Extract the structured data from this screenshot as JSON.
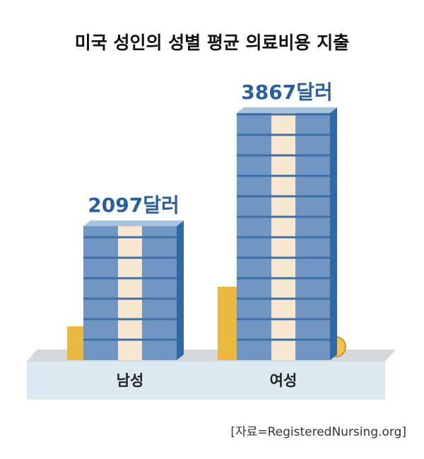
{
  "chart_data": {
    "type": "bar",
    "title": "미국 성인의 성별 평균 의료비용 지출",
    "categories": [
      "남성",
      "여성"
    ],
    "values": [
      2097,
      3867
    ],
    "value_labels": [
      "2097달러",
      "3867달러"
    ],
    "color": "#7097c4",
    "source": "[자료=RegisteredNursing.org]"
  }
}
